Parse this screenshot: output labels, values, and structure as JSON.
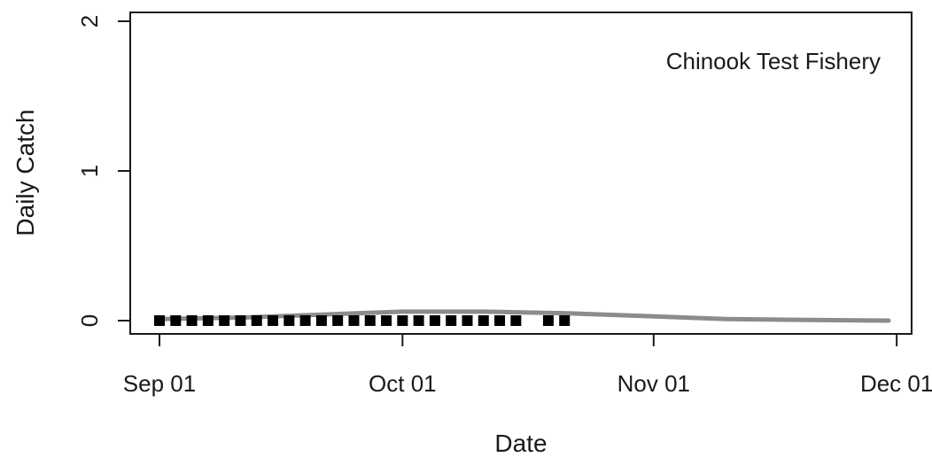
{
  "chart_data": {
    "type": "scatter",
    "title": "",
    "annotation": "Chinook Test Fishery",
    "xlabel": "Date",
    "ylabel": "Daily Catch",
    "xlim": [
      "2023-09-01",
      "2023-11-30"
    ],
    "ylim": [
      0,
      2
    ],
    "x_ticks": [
      {
        "date": "2023-09-01",
        "label": "Sep 01"
      },
      {
        "date": "2023-10-01",
        "label": "Oct 01"
      },
      {
        "date": "2023-11-01",
        "label": "Nov 01"
      },
      {
        "date": "2023-12-01",
        "label": "Dec 01"
      }
    ],
    "y_ticks": [
      {
        "value": 0,
        "label": "0"
      },
      {
        "value": 1,
        "label": "1"
      },
      {
        "value": 2,
        "label": "2"
      }
    ],
    "grid": false,
    "series": [
      {
        "kind": "points",
        "color": "#000000",
        "x": [
          "2023-09-01",
          "2023-09-03",
          "2023-09-05",
          "2023-09-07",
          "2023-09-09",
          "2023-09-11",
          "2023-09-13",
          "2023-09-15",
          "2023-09-17",
          "2023-09-19",
          "2023-09-21",
          "2023-09-23",
          "2023-09-25",
          "2023-09-27",
          "2023-09-29",
          "2023-10-01",
          "2023-10-03",
          "2023-10-05",
          "2023-10-07",
          "2023-10-09",
          "2023-10-11",
          "2023-10-13",
          "2023-10-15",
          "2023-10-19",
          "2023-10-21"
        ],
        "y": [
          0,
          0,
          0,
          0,
          0,
          0,
          0,
          0,
          0,
          0,
          0,
          0,
          0,
          0,
          0,
          0,
          0,
          0,
          0,
          0,
          0,
          0,
          0,
          0,
          0
        ]
      },
      {
        "kind": "line",
        "color": "#8c8c8c",
        "x": [
          "2023-09-01",
          "2023-09-11",
          "2023-09-21",
          "2023-10-01",
          "2023-10-11",
          "2023-10-21",
          "2023-10-31",
          "2023-11-10",
          "2023-11-20",
          "2023-11-30"
        ],
        "y": [
          0.01,
          0.02,
          0.04,
          0.06,
          0.06,
          0.05,
          0.03,
          0.01,
          0.005,
          0
        ]
      }
    ]
  }
}
